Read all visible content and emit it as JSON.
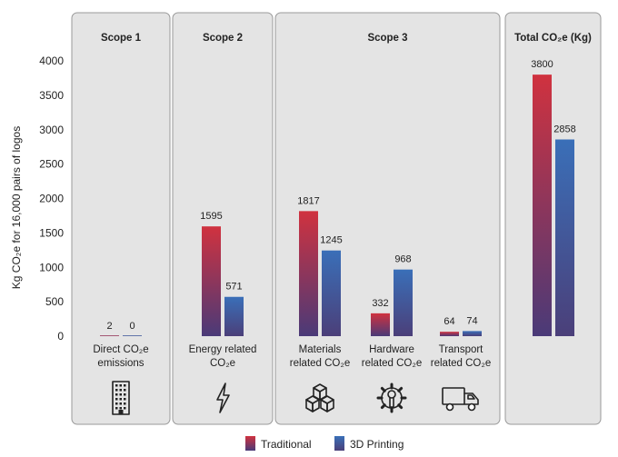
{
  "chart_data": {
    "type": "bar",
    "ylabel": "Kg CO₂e for 16,000 pairs of logos",
    "ylim": [
      0,
      4000
    ],
    "yticks": [
      0,
      500,
      1000,
      1500,
      2000,
      2500,
      3000,
      3500,
      4000
    ],
    "grid": false,
    "legend_position": "bottom",
    "series": [
      {
        "name": "Traditional",
        "color_top": "#d0323f",
        "color_bottom": "#4a3a78"
      },
      {
        "name": "3D Printing",
        "color_top": "#3a6fb8",
        "color_bottom": "#4b3f79"
      }
    ],
    "groups": [
      {
        "title": "Scope 1",
        "categories": [
          {
            "label_lines": [
              "Direct CO₂e",
              "emissions"
            ],
            "values": [
              2,
              0
            ],
            "icon": "building-icon"
          }
        ]
      },
      {
        "title": "Scope 2",
        "categories": [
          {
            "label_lines": [
              "Energy related",
              "CO₂e"
            ],
            "values": [
              1595,
              571
            ],
            "icon": "lightning-icon"
          }
        ]
      },
      {
        "title": "Scope 3",
        "categories": [
          {
            "label_lines": [
              "Materials",
              "related CO₂e"
            ],
            "values": [
              1817,
              1245
            ],
            "icon": "cubes-icon"
          },
          {
            "label_lines": [
              "Hardware",
              "related CO₂e"
            ],
            "values": [
              332,
              968
            ],
            "icon": "gear-wrench-icon"
          },
          {
            "label_lines": [
              "Transport",
              "related CO₂e"
            ],
            "values": [
              64,
              74
            ],
            "icon": "truck-icon"
          }
        ]
      },
      {
        "title": "Total CO₂e (Kg)",
        "categories": [
          {
            "label_lines": [],
            "values": [
              3800,
              2858
            ],
            "icon": ""
          }
        ]
      }
    ]
  }
}
